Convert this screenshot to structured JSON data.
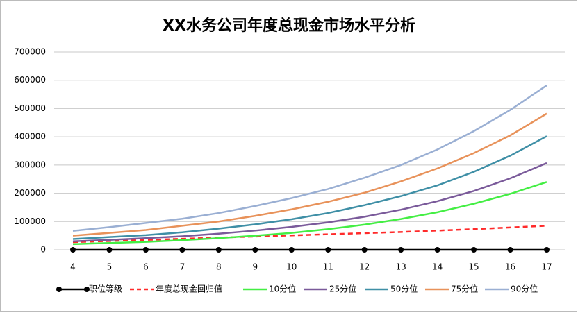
{
  "chart_data": {
    "type": "line",
    "title": "XX水务公司年度总现金市场水平分析",
    "categories": [
      "4",
      "5",
      "6",
      "7",
      "8",
      "9",
      "10",
      "11",
      "12",
      "13",
      "14",
      "15",
      "16",
      "17"
    ],
    "ylim": [
      0,
      700000
    ],
    "yticks": [
      0,
      100000,
      200000,
      300000,
      400000,
      500000,
      600000,
      700000
    ],
    "grid": true,
    "legend": "bottom",
    "series": [
      {
        "name": "职位等级",
        "color": "#000000",
        "marker": true,
        "values": [
          0,
          0,
          0,
          0,
          0,
          0,
          0,
          0,
          0,
          0,
          0,
          0,
          0,
          0
        ]
      },
      {
        "name": "年度总现金回归值",
        "color": "#ff2a2a",
        "dashed": true,
        "values": [
          27000,
          31000,
          35000,
          39000,
          43000,
          47000,
          51000,
          55000,
          59000,
          63000,
          68000,
          73000,
          79000,
          85000
        ]
      },
      {
        "name": "10分位",
        "color": "#44ee44",
        "values": [
          20000,
          24000,
          28000,
          34000,
          41000,
          50000,
          60000,
          73000,
          89000,
          109000,
          133000,
          163000,
          198000,
          240000
        ]
      },
      {
        "name": "25分位",
        "color": "#7a5a9a",
        "values": [
          30000,
          35000,
          41000,
          48000,
          57000,
          68000,
          81000,
          97000,
          117000,
          142000,
          172000,
          208000,
          253000,
          307000
        ]
      },
      {
        "name": "50分位",
        "color": "#3f8fa6",
        "values": [
          38000,
          45000,
          52000,
          62000,
          75000,
          90000,
          108000,
          130000,
          158000,
          190000,
          228000,
          276000,
          333000,
          402000
        ]
      },
      {
        "name": "75分位",
        "color": "#e8925a",
        "values": [
          50000,
          60000,
          70000,
          85000,
          100000,
          120000,
          143000,
          170000,
          202000,
          242000,
          288000,
          342000,
          405000,
          482000
        ]
      },
      {
        "name": "90分位",
        "color": "#9aafd3",
        "values": [
          67000,
          80000,
          95000,
          110000,
          130000,
          155000,
          183000,
          215000,
          255000,
          300000,
          355000,
          420000,
          495000,
          582000
        ]
      }
    ]
  }
}
